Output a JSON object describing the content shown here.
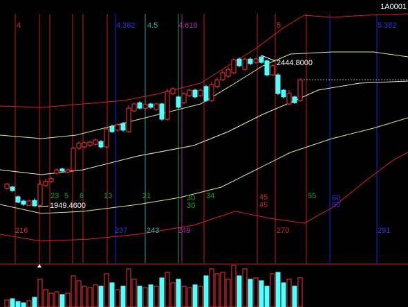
{
  "chart_data": {
    "type": "candlestick",
    "code": "1A0001",
    "ylim": [
      1763.8,
      2626.4
    ],
    "open": [
      2009,
      2014,
      1982,
      1968,
      1954,
      1970,
      1954,
      2018,
      2032,
      2059,
      2073,
      2063,
      2068,
      2141,
      2145,
      2150,
      2154,
      2163,
      2145,
      2213,
      2200,
      2222,
      2195,
      2263,
      2290,
      2272,
      2286,
      2268,
      2286,
      2236,
      2320,
      2309,
      2290,
      2313,
      2331,
      2313,
      2343,
      2297,
      2343,
      2365,
      2377,
      2388,
      2433,
      2399,
      2433,
      2422,
      2440,
      2427,
      2381,
      2381,
      2331,
      2286,
      2309,
      2297
    ],
    "close": [
      2023,
      2002,
      1964,
      1957,
      1968,
      1952,
      2023,
      2032,
      2041,
      2070,
      2066,
      2070,
      2141,
      2157,
      2159,
      2161,
      2168,
      2145,
      2204,
      2195,
      2218,
      2200,
      2272,
      2286,
      2272,
      2284,
      2275,
      2286,
      2236,
      2327,
      2336,
      2275,
      2320,
      2331,
      2309,
      2331,
      2297,
      2349,
      2365,
      2388,
      2399,
      2431,
      2411,
      2433,
      2418,
      2433,
      2422,
      2381,
      2411,
      2320,
      2309,
      2320,
      2290,
      2365
    ],
    "high": [
      2027,
      2018,
      1986,
      1973,
      1973,
      1977,
      2036,
      2041,
      2048,
      2075,
      2077,
      2075,
      2145,
      2163,
      2163,
      2166,
      2172,
      2168,
      2209,
      2218,
      2222,
      2227,
      2281,
      2290,
      2295,
      2290,
      2290,
      2290,
      2290,
      2336,
      2340,
      2313,
      2324,
      2336,
      2336,
      2336,
      2349,
      2359,
      2372,
      2395,
      2406,
      2436,
      2438,
      2438,
      2438,
      2438,
      2444.8,
      2431,
      2415,
      2386,
      2336,
      2331,
      2313,
      2370
    ],
    "low": [
      2004,
      1998,
      1961,
      1952,
      1952,
      1949.46,
      1952,
      2014,
      2027,
      2054,
      2061,
      2059,
      2063,
      2136,
      2141,
      2145,
      2150,
      2141,
      2141,
      2191,
      2195,
      2195,
      2191,
      2259,
      2268,
      2268,
      2270,
      2263,
      2231,
      2231,
      2315,
      2270,
      2286,
      2309,
      2304,
      2309,
      2293,
      2293,
      2338,
      2361,
      2372,
      2384,
      2406,
      2395,
      2413,
      2418,
      2418,
      2377,
      2377,
      2315,
      2304,
      2281,
      2286,
      2293
    ],
    "volume": [
      10,
      12,
      8,
      6,
      9,
      14,
      40,
      25,
      20,
      22,
      18,
      20,
      45,
      38,
      30,
      28,
      32,
      30,
      48,
      35,
      25,
      30,
      55,
      40,
      30,
      28,
      32,
      30,
      42,
      50,
      35,
      40,
      30,
      28,
      32,
      30,
      45,
      55,
      48,
      50,
      40,
      60,
      45,
      55,
      40,
      42,
      38,
      30,
      48,
      50,
      35,
      40,
      30,
      42
    ],
    "vlim": [
      0,
      60
    ],
    "up_color": "#ff3232",
    "down_color": "#54ffff",
    "high_label": "2444.8000",
    "low_label": "1949.4600",
    "zone_labels": [
      "4",
      "216",
      "4.382",
      "237",
      "4.5",
      "243",
      "4.618",
      "249",
      "5",
      "270",
      "5.382",
      "291",
      "23",
      "5",
      "8",
      "13",
      "21",
      "30",
      "30",
      "34",
      "45",
      "45",
      "55",
      "60",
      "60"
    ]
  }
}
